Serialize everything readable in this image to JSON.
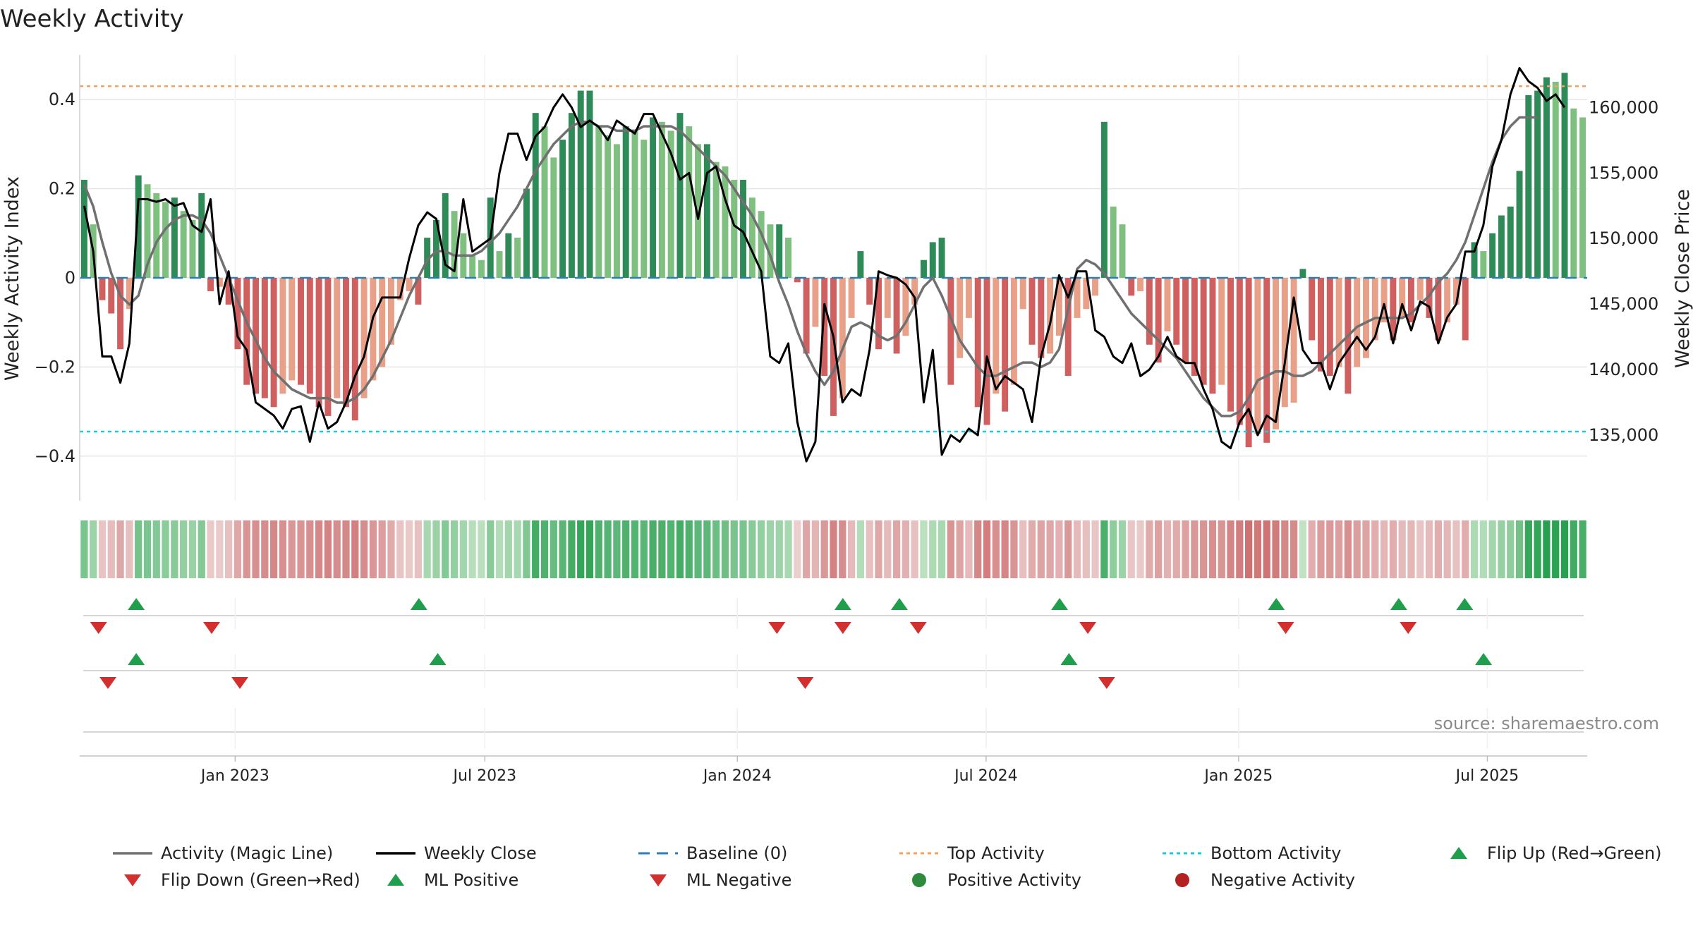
{
  "chart_data": {
    "type": "bar",
    "title": "Weekly Activity",
    "ylabel_left": "Weekly Activity Index",
    "ylabel_right": "Weekly Close Price",
    "ylim_left": [
      -0.5,
      0.5
    ],
    "yticks_left": [
      0.4,
      0.2,
      0,
      -0.2,
      -0.4
    ],
    "yticks_left_labels": [
      "0.4",
      "0.2",
      "0",
      "−0.2",
      "−0.4"
    ],
    "ylim_right": [
      130000,
      164000
    ],
    "yticks_right": [
      160000,
      155000,
      150000,
      145000,
      140000,
      135000
    ],
    "yticks_right_labels": [
      "160,000",
      "155,000",
      "150,000",
      "145,000",
      "140,000",
      "135,000"
    ],
    "week_range": [
      0,
      160
    ],
    "x_ticks": [
      {
        "week": 16.5,
        "label": "Jan 2023"
      },
      {
        "week": 43,
        "label": "Jul 2023"
      },
      {
        "week": 69.8,
        "label": "Jan 2024"
      },
      {
        "week": 96.2,
        "label": "Jul 2024"
      },
      {
        "week": 123,
        "label": "Jan 2025"
      },
      {
        "week": 149.4,
        "label": "Jul 2025"
      }
    ],
    "top_activity": 0.43,
    "bottom_activity": -0.345,
    "activity": [
      0.22,
      0.12,
      -0.05,
      -0.08,
      -0.16,
      -0.07,
      0.23,
      0.21,
      0.19,
      0.17,
      0.18,
      0.15,
      0.13,
      0.19,
      -0.03,
      -0.02,
      -0.06,
      -0.16,
      -0.24,
      -0.26,
      -0.27,
      -0.29,
      -0.26,
      -0.23,
      -0.24,
      -0.26,
      -0.29,
      -0.31,
      -0.27,
      -0.29,
      -0.32,
      -0.27,
      -0.23,
      -0.2,
      -0.15,
      -0.05,
      -0.03,
      -0.06,
      0.09,
      0.13,
      0.19,
      0.15,
      0.1,
      0.05,
      0.04,
      0.18,
      0.06,
      0.1,
      0.09,
      0.2,
      0.37,
      0.34,
      0.27,
      0.31,
      0.37,
      0.42,
      0.42,
      0.34,
      0.32,
      0.3,
      0.34,
      0.33,
      0.31,
      0.36,
      0.35,
      0.33,
      0.37,
      0.34,
      0.3,
      0.3,
      0.26,
      0.25,
      0.22,
      0.22,
      0.18,
      0.15,
      0.12,
      0.12,
      0.09,
      -0.01,
      -0.17,
      -0.11,
      -0.22,
      -0.31,
      -0.27,
      -0.09,
      0.06,
      -0.06,
      -0.16,
      -0.09,
      -0.17,
      -0.13,
      -0.06,
      0.04,
      0.08,
      0.09,
      -0.24,
      -0.18,
      -0.09,
      -0.29,
      -0.33,
      -0.26,
      -0.3,
      -0.24,
      -0.07,
      -0.15,
      -0.18,
      -0.17,
      -0.13,
      -0.22,
      -0.09,
      -0.07,
      -0.04,
      0.35,
      0.16,
      0.12,
      -0.04,
      -0.03,
      -0.15,
      -0.19,
      -0.12,
      -0.15,
      -0.19,
      -0.22,
      -0.24,
      -0.26,
      -0.24,
      -0.3,
      -0.33,
      -0.38,
      -0.35,
      -0.37,
      -0.34,
      -0.29,
      -0.28,
      0.02,
      -0.14,
      -0.21,
      -0.22,
      -0.2,
      -0.26,
      -0.2,
      -0.18,
      -0.14,
      -0.1,
      -0.14,
      -0.09,
      -0.1,
      -0.05,
      -0.09,
      -0.14,
      -0.1,
      -0.06,
      -0.14,
      0.08,
      0.06,
      0.1,
      0.14,
      0.16,
      0.24,
      0.41,
      0.42,
      0.45,
      0.44,
      0.46,
      0.38,
      0.36
    ],
    "weekly_close": [
      152500,
      149000,
      141000,
      141000,
      139000,
      142000,
      153000,
      153000,
      152800,
      153000,
      152500,
      152700,
      151000,
      150500,
      153000,
      145000,
      147500,
      142500,
      141500,
      137500,
      137000,
      136500,
      135500,
      137000,
      137200,
      134500,
      137500,
      135500,
      136000,
      137500,
      139500,
      141000,
      144000,
      145500,
      145500,
      145500,
      148500,
      151000,
      152000,
      151500,
      148000,
      147500,
      153000,
      149000,
      149500,
      150000,
      155000,
      158000,
      158000,
      156000,
      157800,
      158500,
      160000,
      161000,
      160000,
      158500,
      159000,
      158500,
      157500,
      159000,
      158500,
      158000,
      159500,
      159500,
      158000,
      156500,
      154500,
      155000,
      151500,
      155000,
      155500,
      153000,
      151000,
      150500,
      149000,
      147500,
      141000,
      140500,
      142000,
      136000,
      133000,
      134500,
      145000,
      142500,
      137500,
      138500,
      138000,
      141500,
      147500,
      147200,
      147000,
      146500,
      145500,
      137500,
      141500,
      133500,
      135000,
      134500,
      135500,
      135000,
      141000,
      138500,
      139500,
      139000,
      138500,
      136000,
      141000,
      143500,
      147200,
      145500,
      147500,
      147500,
      143000,
      142500,
      141000,
      140500,
      142000,
      139500,
      140000,
      141000,
      142500,
      141000,
      140500,
      140500,
      138500,
      137000,
      134500,
      134000,
      136000,
      137000,
      135000,
      136500,
      136000,
      140500,
      145500,
      141500,
      140500,
      140500,
      138500,
      140500,
      141500,
      142500,
      141500,
      142500,
      145000,
      142000,
      145000,
      143000,
      145200,
      144800,
      142000,
      144000,
      145000,
      149000,
      149000,
      151000,
      155500,
      157500,
      161000,
      163000,
      162000,
      161500,
      160500,
      161000,
      160000
    ],
    "magic_line": [
      0.21,
      0.16,
      0.08,
      0.01,
      -0.04,
      -0.06,
      -0.04,
      0.03,
      0.08,
      0.11,
      0.13,
      0.14,
      0.14,
      0.13,
      0.1,
      0.05,
      0.0,
      -0.05,
      -0.1,
      -0.14,
      -0.18,
      -0.21,
      -0.23,
      -0.25,
      -0.26,
      -0.27,
      -0.27,
      -0.27,
      -0.28,
      -0.28,
      -0.27,
      -0.25,
      -0.22,
      -0.18,
      -0.14,
      -0.09,
      -0.04,
      0.0,
      0.04,
      0.06,
      0.06,
      0.05,
      0.05,
      0.05,
      0.06,
      0.08,
      0.1,
      0.13,
      0.16,
      0.2,
      0.24,
      0.27,
      0.3,
      0.32,
      0.34,
      0.35,
      0.35,
      0.34,
      0.34,
      0.33,
      0.33,
      0.33,
      0.34,
      0.34,
      0.34,
      0.34,
      0.33,
      0.31,
      0.29,
      0.27,
      0.25,
      0.23,
      0.2,
      0.17,
      0.14,
      0.1,
      0.05,
      -0.01,
      -0.06,
      -0.12,
      -0.17,
      -0.21,
      -0.24,
      -0.21,
      -0.16,
      -0.11,
      -0.1,
      -0.11,
      -0.13,
      -0.14,
      -0.13,
      -0.1,
      -0.06,
      -0.02,
      0.0,
      -0.04,
      -0.09,
      -0.14,
      -0.17,
      -0.2,
      -0.22,
      -0.22,
      -0.21,
      -0.2,
      -0.19,
      -0.19,
      -0.2,
      -0.19,
      -0.16,
      -0.07,
      0.02,
      0.04,
      0.03,
      0.01,
      -0.02,
      -0.05,
      -0.08,
      -0.1,
      -0.12,
      -0.14,
      -0.16,
      -0.18,
      -0.21,
      -0.24,
      -0.27,
      -0.29,
      -0.31,
      -0.31,
      -0.3,
      -0.27,
      -0.23,
      -0.22,
      -0.21,
      -0.21,
      -0.22,
      -0.22,
      -0.21,
      -0.19,
      -0.17,
      -0.15,
      -0.13,
      -0.11,
      -0.1,
      -0.09,
      -0.09,
      -0.09,
      -0.09,
      -0.08,
      -0.06,
      -0.04,
      -0.01,
      0.01,
      0.04,
      0.08,
      0.14,
      0.2,
      0.26,
      0.31,
      0.34,
      0.36,
      0.36,
      0.36
    ],
    "flip_up_weeks": [
      6,
      36,
      81,
      87,
      104,
      127,
      140,
      147
    ],
    "flip_down_weeks": [
      2,
      14,
      74,
      81,
      89,
      107,
      128,
      141
    ],
    "ml_positive_weeks": [
      6,
      38,
      105,
      149
    ],
    "ml_negative_weeks": [
      3,
      17,
      77,
      109
    ],
    "legend": [
      {
        "label": "Activity (Magic Line)",
        "kind": "line",
        "color": "#707070"
      },
      {
        "label": "Weekly Close",
        "kind": "line",
        "color": "#000000"
      },
      {
        "label": "Baseline (0)",
        "kind": "dashed",
        "color": "#2e7db3"
      },
      {
        "label": "Top Activity",
        "kind": "dotted",
        "color": "#f4a261"
      },
      {
        "label": "Bottom Activity",
        "kind": "dotted",
        "color": "#26c6da"
      },
      {
        "label": "Flip Up (Red→Green)",
        "kind": "tri-up",
        "color": "#1f9e4b"
      },
      {
        "label": "Flip Down (Green→Red)",
        "kind": "tri-down",
        "color": "#d32f2f"
      },
      {
        "label": "ML Positive",
        "kind": "tri-up",
        "color": "#1f9e4b"
      },
      {
        "label": "ML Negative",
        "kind": "tri-down",
        "color": "#d32f2f"
      },
      {
        "label": "Positive Activity",
        "kind": "dot",
        "color": "#2e8b3e"
      },
      {
        "label": "Negative Activity",
        "kind": "dot",
        "color": "#b22222"
      }
    ],
    "source": "source: sharemaestro.com",
    "colors": {
      "pos_strong": "#2e8b57",
      "pos_light": "#7fbf7f",
      "neg_strong": "#d06060",
      "neg_light": "#e8a088",
      "up": "#1f9e4b",
      "down": "#d32f2f",
      "grid": "#e6e6e6"
    }
  }
}
